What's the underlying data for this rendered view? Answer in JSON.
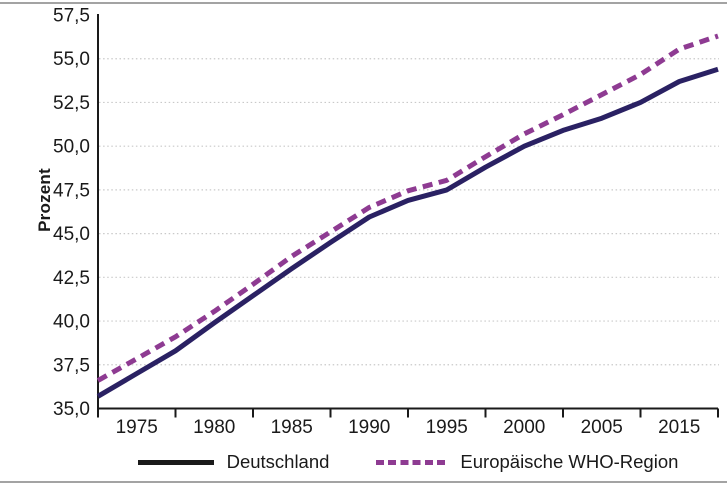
{
  "figure": {
    "y_axis_title": "Prozent",
    "background": "#ffffff",
    "border_color": "#a3a3a3",
    "axis_color": "#1a1a1a",
    "grid_color": "#c9c9c9"
  },
  "legend": {
    "items": [
      {
        "label": "Deutschland",
        "style": "solid",
        "swatch_color": "#1a1a1a"
      },
      {
        "label": "Europäische WHO-Region",
        "style": "dashed",
        "swatch_color": "#8e3b92"
      }
    ]
  },
  "chart_data": {
    "type": "line",
    "title": "",
    "xlabel": "",
    "ylabel": "Prozent",
    "ylim": [
      35.0,
      57.5
    ],
    "y_ticks": [
      35.0,
      37.5,
      40.0,
      42.5,
      45.0,
      47.5,
      50.0,
      52.5,
      55.0,
      57.5
    ],
    "y_tick_labels": [
      "35,0",
      "37,5",
      "40,0",
      "42,5",
      "45,0",
      "47,5",
      "50,0",
      "52,5",
      "55,0",
      "57,5"
    ],
    "x_tick_segment_labels": [
      "1975",
      "1980",
      "1985",
      "1990",
      "1995",
      "2000",
      "2005",
      "2015"
    ],
    "grid": "horizontal dotted, no gridline at axis min/max",
    "legend_position": "bottom center",
    "x_layout_note": "9 evenly spaced boundary ticks form 8 equal segments; year labels are centered inside the segments; series sampled at 17 evenly spaced positions from left axis to right axis end",
    "series": [
      {
        "name": "Deutschland",
        "color": "#2a2163",
        "dash": null,
        "values": [
          35.7,
          37.0,
          38.3,
          39.9,
          41.45,
          43.0,
          44.5,
          45.95,
          46.9,
          47.5,
          48.8,
          50.0,
          50.9,
          51.6,
          52.5,
          53.7,
          54.4
        ]
      },
      {
        "name": "Europäische WHO-Region",
        "color": "#8e3b92",
        "dash": [
          10,
          6.5
        ],
        "values": [
          36.6,
          37.85,
          39.1,
          40.55,
          42.1,
          43.7,
          45.1,
          46.5,
          47.45,
          48.05,
          49.4,
          50.7,
          51.8,
          52.95,
          54.1,
          55.55,
          56.3
        ]
      }
    ]
  }
}
